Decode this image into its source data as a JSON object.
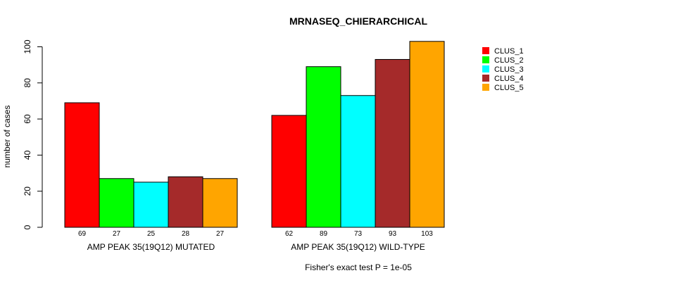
{
  "chart_data": {
    "type": "bar",
    "title": "MRNASEQ_CHIERARCHICAL",
    "ylabel": "number of cases",
    "xlabel": "",
    "ylim": [
      0,
      100
    ],
    "yticks": [
      0,
      20,
      40,
      60,
      80,
      100
    ],
    "groups": [
      "AMP PEAK 35(19Q12) MUTATED",
      "AMP PEAK 35(19Q12) WILD-TYPE"
    ],
    "series": [
      {
        "name": "CLUS_1",
        "color": "#ff0000",
        "values": [
          69,
          62
        ]
      },
      {
        "name": "CLUS_2",
        "color": "#00ff00",
        "values": [
          27,
          89
        ]
      },
      {
        "name": "CLUS_3",
        "color": "#00ffff",
        "values": [
          25,
          73
        ]
      },
      {
        "name": "CLUS_4",
        "color": "#a52a2a",
        "values": [
          28,
          93
        ]
      },
      {
        "name": "CLUS_5",
        "color": "#ffa500",
        "values": [
          27,
          103
        ]
      }
    ],
    "legend_position": "top-right",
    "grid": false,
    "footnote": "Fisher's exact test P = 1e-05"
  }
}
